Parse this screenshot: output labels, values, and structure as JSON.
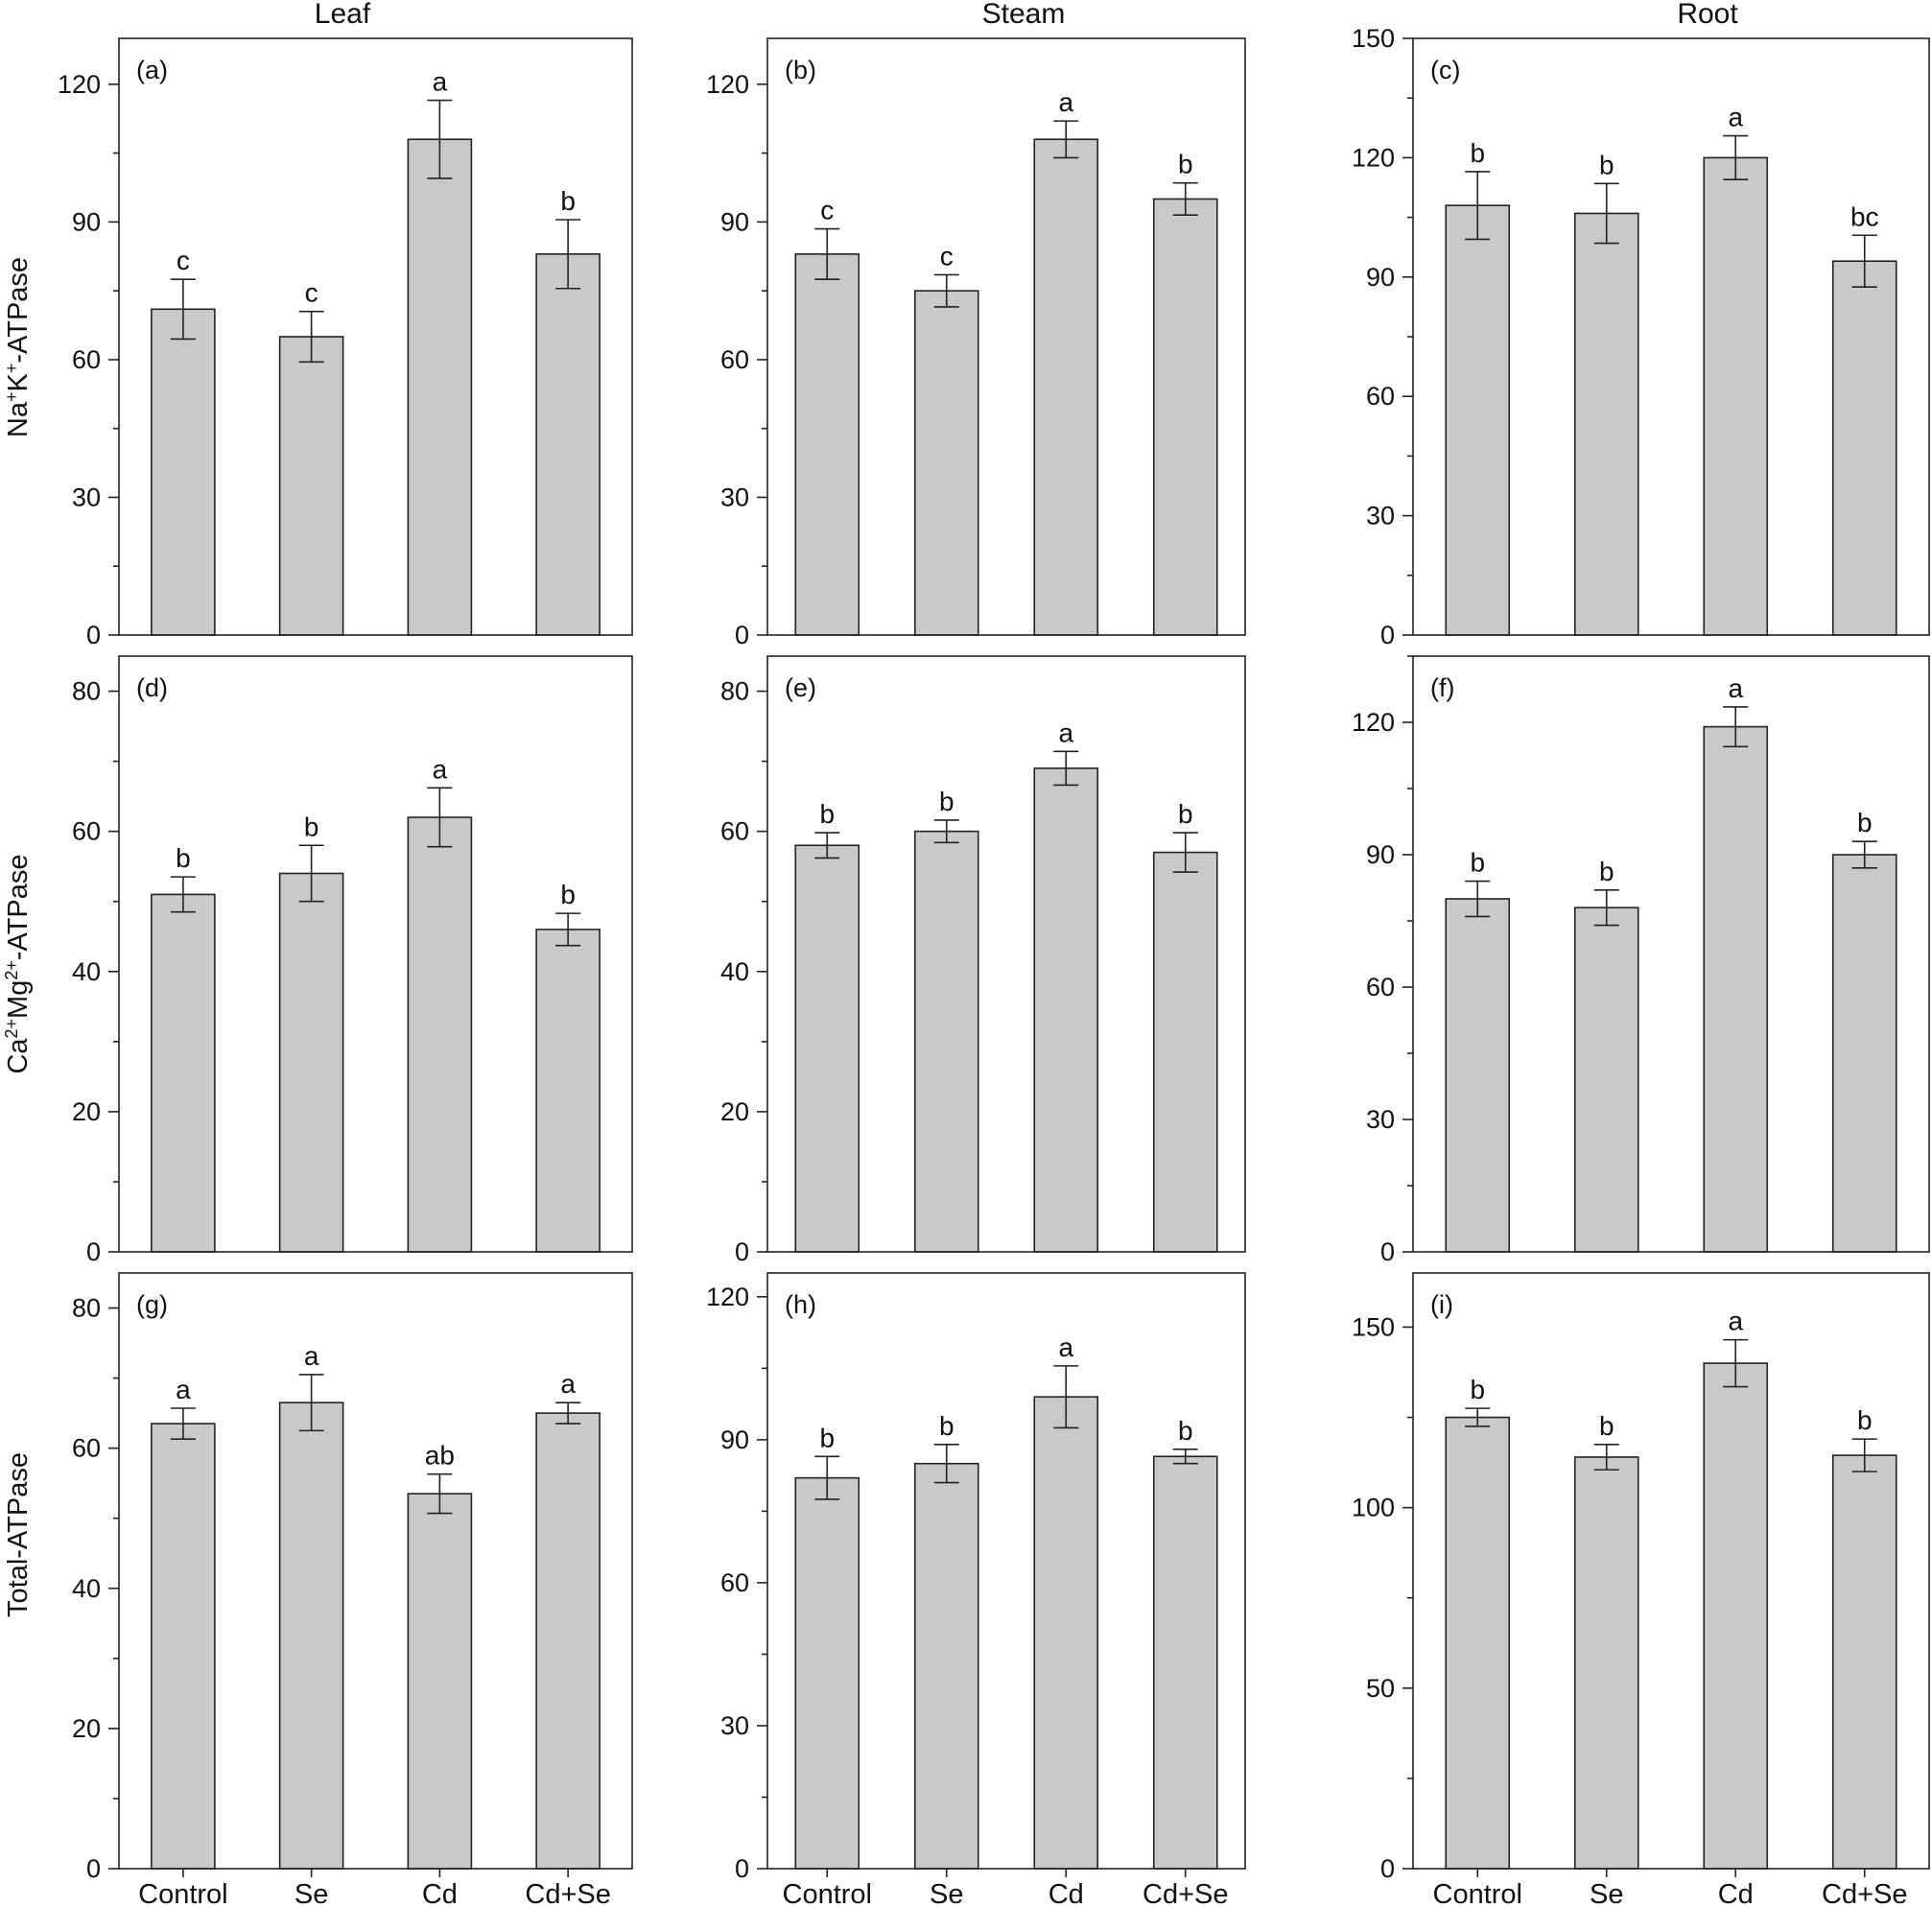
{
  "column_titles": [
    "Leaf",
    "Steam",
    "Root"
  ],
  "row_labels": [
    {
      "base": "Na",
      "sup1": "+",
      "mid": "K",
      "sup2": "+",
      "end": "-ATPase"
    },
    {
      "base": "Ca",
      "sup1": "2+",
      "mid": "Mg",
      "sup2": "2+",
      "end": "-ATPase"
    },
    {
      "base": "Total-ATPase",
      "sup1": "",
      "mid": "",
      "sup2": "",
      "end": ""
    }
  ],
  "colors": {
    "bar_fill": "#c8c9cb",
    "stroke": "#222222"
  },
  "chart_data": [
    {
      "type": "bar",
      "panel_label": "(a)",
      "categories": [
        "Control",
        "Se",
        "Cd",
        "Cd+Se"
      ],
      "values": [
        71,
        65,
        108,
        83
      ],
      "errors": [
        6.5,
        5.5,
        8.5,
        7.5
      ],
      "sig": [
        "c",
        "c",
        "a",
        "b"
      ],
      "ylim": [
        0,
        130
      ],
      "yticks": [
        0,
        30,
        60,
        90,
        120
      ],
      "minor_step": 15
    },
    {
      "type": "bar",
      "panel_label": "(b)",
      "categories": [
        "Control",
        "Se",
        "Cd",
        "Cd+Se"
      ],
      "values": [
        83,
        75,
        108,
        95
      ],
      "errors": [
        5.5,
        3.5,
        4,
        3.5
      ],
      "sig": [
        "c",
        "c",
        "a",
        "b"
      ],
      "ylim": [
        0,
        130
      ],
      "yticks": [
        0,
        30,
        60,
        90,
        120
      ],
      "minor_step": 15
    },
    {
      "type": "bar",
      "panel_label": "(c)",
      "categories": [
        "Control",
        "Se",
        "Cd",
        "Cd+Se"
      ],
      "values": [
        108,
        106,
        120,
        94
      ],
      "errors": [
        8.5,
        7.5,
        5.5,
        6.5
      ],
      "sig": [
        "b",
        "b",
        "a",
        "bc"
      ],
      "ylim": [
        0,
        150
      ],
      "yticks": [
        0,
        30,
        60,
        90,
        120,
        150
      ],
      "minor_step": 15
    },
    {
      "type": "bar",
      "panel_label": "(d)",
      "categories": [
        "Control",
        "Se",
        "Cd",
        "Cd+Se"
      ],
      "values": [
        51,
        54,
        62,
        46
      ],
      "errors": [
        2.5,
        4,
        4.2,
        2.3
      ],
      "sig": [
        "b",
        "b",
        "a",
        "b"
      ],
      "ylim": [
        0,
        85
      ],
      "yticks": [
        0,
        20,
        40,
        60,
        80
      ],
      "minor_step": 10
    },
    {
      "type": "bar",
      "panel_label": "(e)",
      "categories": [
        "Control",
        "Se",
        "Cd",
        "Cd+Se"
      ],
      "values": [
        58,
        60,
        69,
        57
      ],
      "errors": [
        1.8,
        1.6,
        2.4,
        2.8
      ],
      "sig": [
        "b",
        "b",
        "a",
        "b"
      ],
      "ylim": [
        0,
        85
      ],
      "yticks": [
        0,
        20,
        40,
        60,
        80
      ],
      "minor_step": 10
    },
    {
      "type": "bar",
      "panel_label": "(f)",
      "categories": [
        "Control",
        "Se",
        "Cd",
        "Cd+Se"
      ],
      "values": [
        80,
        78,
        119,
        90
      ],
      "errors": [
        4,
        4,
        4.5,
        3
      ],
      "sig": [
        "b",
        "b",
        "a",
        "b"
      ],
      "ylim": [
        0,
        135
      ],
      "yticks": [
        0,
        30,
        60,
        90,
        120
      ],
      "minor_step": 15
    },
    {
      "type": "bar",
      "panel_label": "(g)",
      "categories": [
        "Control",
        "Se",
        "Cd",
        "Cd+Se"
      ],
      "values": [
        63.5,
        66.5,
        53.5,
        65
      ],
      "errors": [
        2.2,
        4,
        2.8,
        1.5
      ],
      "sig": [
        "a",
        "a",
        "ab",
        "a"
      ],
      "ylim": [
        0,
        85
      ],
      "yticks": [
        0,
        20,
        40,
        60,
        80
      ],
      "minor_step": 10
    },
    {
      "type": "bar",
      "panel_label": "(h)",
      "categories": [
        "Control",
        "Se",
        "Cd",
        "Cd+Se"
      ],
      "values": [
        82,
        85,
        99,
        86.5
      ],
      "errors": [
        4.5,
        4,
        6.5,
        1.5
      ],
      "sig": [
        "b",
        "b",
        "a",
        "b"
      ],
      "ylim": [
        0,
        125
      ],
      "yticks": [
        0,
        30,
        60,
        90,
        120
      ],
      "minor_step": 15
    },
    {
      "type": "bar",
      "panel_label": "(i)",
      "categories": [
        "Control",
        "Se",
        "Cd",
        "Cd+Se"
      ],
      "values": [
        125,
        114,
        140,
        114.5
      ],
      "errors": [
        2.5,
        3.5,
        6.5,
        4.5
      ],
      "sig": [
        "b",
        "b",
        "a",
        "b"
      ],
      "ylim": [
        0,
        165
      ],
      "yticks": [
        0,
        50,
        100,
        150
      ],
      "minor_step": 25
    }
  ]
}
